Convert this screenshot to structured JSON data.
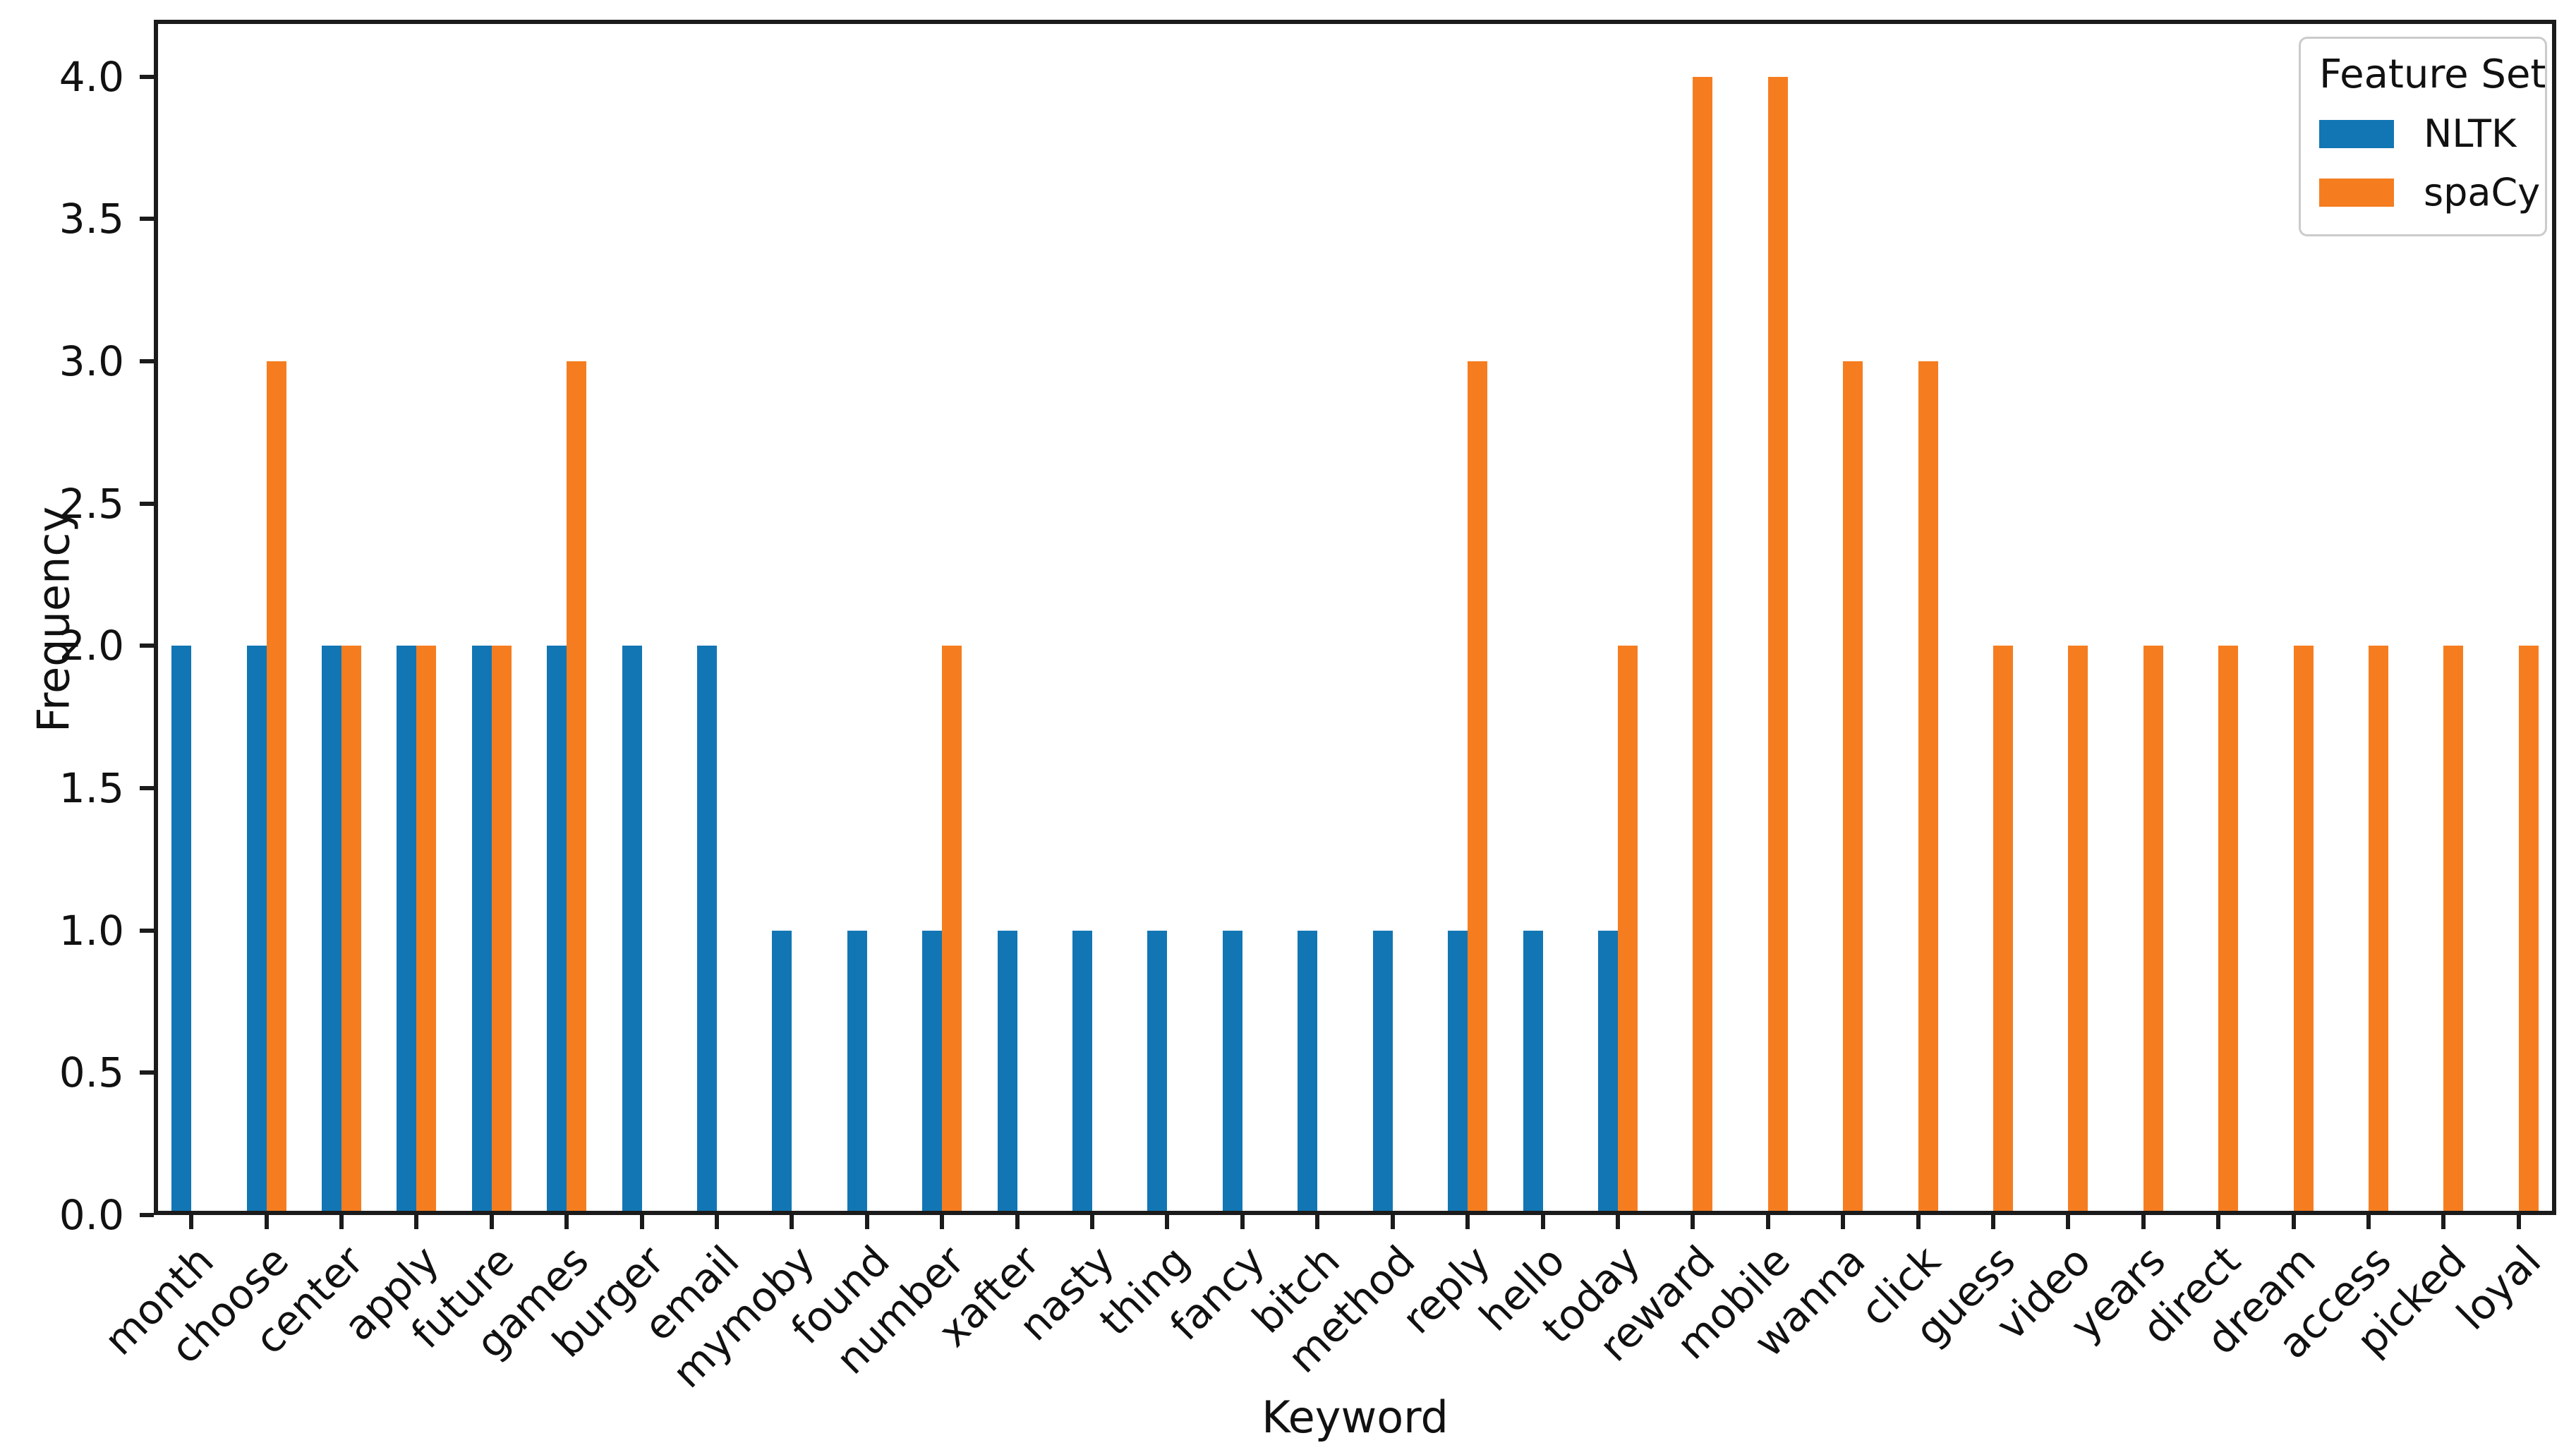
{
  "chart_data": {
    "type": "bar",
    "title": "",
    "xlabel": "Keyword",
    "ylabel": "Frequency",
    "categories": [
      "month",
      "choose",
      "center",
      "apply",
      "future",
      "games",
      "burger",
      "email",
      "mymoby",
      "found",
      "number",
      "xafter",
      "nasty",
      "thing",
      "fancy",
      "bitch",
      "method",
      "reply",
      "hello",
      "today",
      "reward",
      "mobile",
      "wanna",
      "click",
      "guess",
      "video",
      "years",
      "direct",
      "dream",
      "access",
      "picked",
      "loyal"
    ],
    "series": [
      {
        "name": "NLTK",
        "color": "#1276b4",
        "values": [
          2,
          2,
          2,
          2,
          2,
          2,
          2,
          2,
          1,
          1,
          1,
          1,
          1,
          1,
          1,
          1,
          1,
          1,
          1,
          1,
          0,
          0,
          0,
          0,
          0,
          0,
          0,
          0,
          0,
          0,
          0,
          0
        ]
      },
      {
        "name": "spaCy",
        "color": "#f57d20",
        "values": [
          0,
          3,
          2,
          2,
          2,
          3,
          0,
          0,
          0,
          0,
          2,
          0,
          0,
          0,
          0,
          0,
          0,
          3,
          0,
          2,
          4,
          4,
          3,
          3,
          2,
          2,
          2,
          2,
          2,
          2,
          2,
          2
        ]
      }
    ],
    "ylim": [
      0,
      4.2
    ],
    "yticks": [
      "0.0",
      "0.5",
      "1.0",
      "1.5",
      "2.0",
      "2.5",
      "3.0",
      "3.5",
      "4.0"
    ],
    "xtick_rotation": 45,
    "grid": false,
    "legend": {
      "title": "Feature Set",
      "position": "upper right"
    },
    "axis_color": "#1b1b1b"
  }
}
